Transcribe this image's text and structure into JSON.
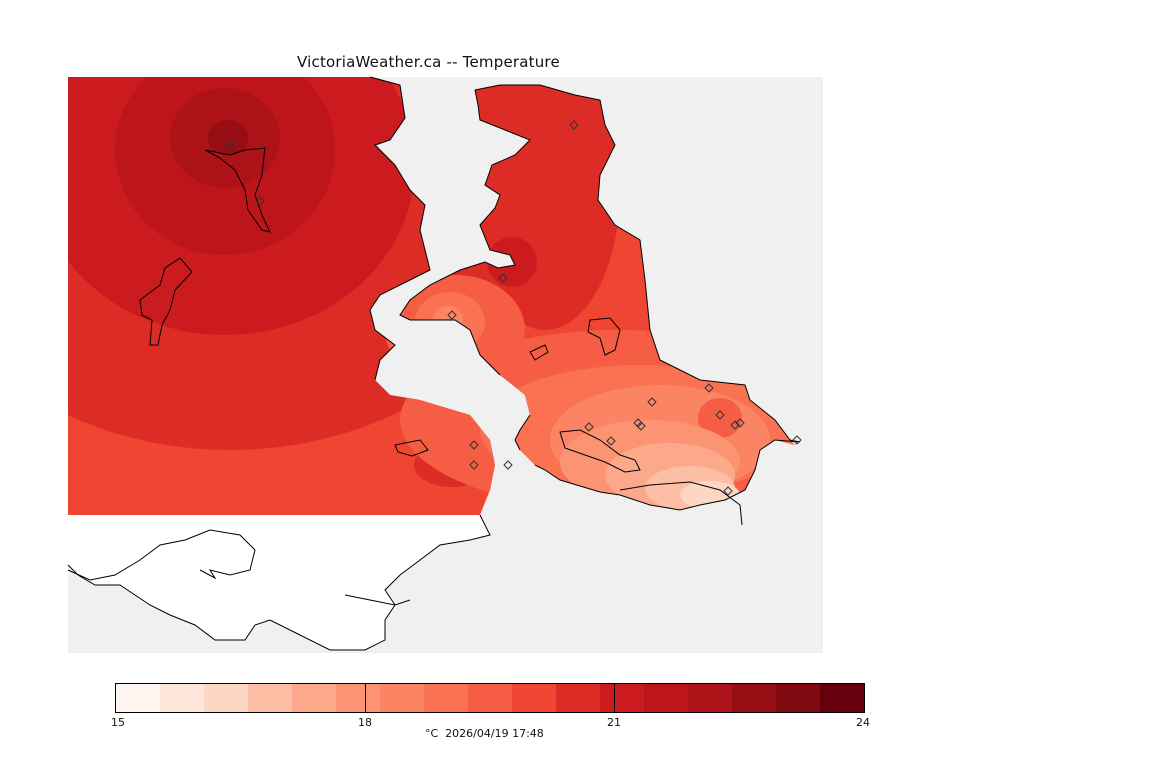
{
  "title": "VictoriaWeather.ca -- Temperature",
  "colorbar": {
    "ticks": [
      "15",
      "18",
      "21",
      "24"
    ],
    "colors": [
      "#fff5f0",
      "#fee6da",
      "#fdd7c4",
      "#fcbea5",
      "#fca88b",
      "#fc9474",
      "#fb8464",
      "#fb7253",
      "#f55d44",
      "#ef4533",
      "#dd2c25",
      "#cb1b1f",
      "#bd151a",
      "#ac1217",
      "#960e14",
      "#800a10",
      "#67000d"
    ]
  },
  "caption": "°C  2026/04/19 17:48",
  "map": {
    "background": "#f0f0f0",
    "land_background": "#ffffff",
    "station_symbol": "diamond"
  }
}
